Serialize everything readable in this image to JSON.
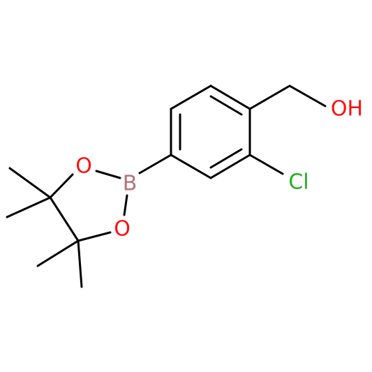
{
  "atoms": [
    {
      "label": "OH"
    },
    {
      "label": "Cl"
    },
    {
      "label": "O"
    },
    {
      "label": "B"
    },
    {
      "label": "O"
    }
  ]
}
